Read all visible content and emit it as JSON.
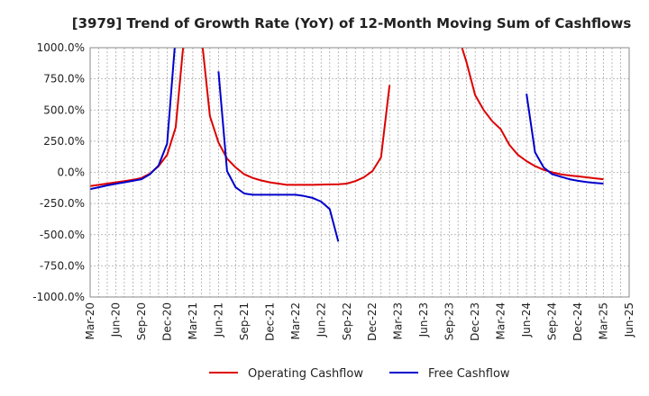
{
  "chart_data": {
    "type": "line",
    "title": "[3979]  Trend of Growth Rate (YoY) of 12-Month Moving Sum of Cashflows",
    "xlabel": "",
    "ylabel": "",
    "ylim": [
      -1000,
      1000
    ],
    "yticks": [
      1000,
      750,
      500,
      250,
      0,
      -250,
      -500,
      -750,
      -1000
    ],
    "ytick_labels": [
      "1000.0%",
      "750.0%",
      "500.0%",
      "250.0%",
      "0.0%",
      "-250.0%",
      "-500.0%",
      "-750.0%",
      "-1000.0%"
    ],
    "xtick_labels": [
      "Mar-20",
      "Jun-20",
      "Sep-20",
      "Dec-20",
      "Mar-21",
      "Jun-21",
      "Sep-21",
      "Dec-21",
      "Mar-22",
      "Jun-22",
      "Sep-22",
      "Dec-22",
      "Mar-23",
      "Jun-23",
      "Sep-23",
      "Dec-23",
      "Mar-24",
      "Jun-24",
      "Sep-24",
      "Dec-24",
      "Mar-25",
      "Jun-25"
    ],
    "grid": true,
    "legend_position": "bottom",
    "series": [
      {
        "name": "Operating Cashflow",
        "color": "#dd0000",
        "points": [
          [
            "Mar-20",
            -110
          ],
          [
            "Apr-20",
            -100
          ],
          [
            "May-20",
            -90
          ],
          [
            "Jun-20",
            -80
          ],
          [
            "Jul-20",
            -70
          ],
          [
            "Aug-20",
            -60
          ],
          [
            "Sep-20",
            -45
          ],
          [
            "Oct-20",
            -10
          ],
          [
            "Nov-20",
            50
          ],
          [
            "Dec-20",
            140
          ],
          [
            "Jan-21",
            360
          ],
          [
            "Feb-21",
            1100
          ],
          null,
          [
            "Apr-21",
            1100
          ],
          [
            "May-21",
            450
          ],
          [
            "Jun-21",
            240
          ],
          [
            "Jul-21",
            110
          ],
          [
            "Aug-21",
            40
          ],
          [
            "Sep-21",
            -15
          ],
          [
            "Oct-21",
            -45
          ],
          [
            "Nov-21",
            -65
          ],
          [
            "Dec-21",
            -80
          ],
          [
            "Jan-22",
            -90
          ],
          [
            "Feb-22",
            -100
          ],
          [
            "Mar-22",
            -100
          ],
          [
            "Apr-22",
            -100
          ],
          [
            "May-22",
            -100
          ],
          [
            "Jun-22",
            -98
          ],
          [
            "Jul-22",
            -97
          ],
          [
            "Aug-22",
            -96
          ],
          [
            "Sep-22",
            -90
          ],
          [
            "Oct-22",
            -70
          ],
          [
            "Nov-22",
            -40
          ],
          [
            "Dec-22",
            10
          ],
          [
            "Jan-23",
            120
          ],
          [
            "Feb-23",
            700
          ],
          null,
          [
            "Oct-23",
            1100
          ],
          [
            "Nov-23",
            880
          ],
          [
            "Dec-23",
            620
          ],
          [
            "Jan-24",
            500
          ],
          [
            "Feb-24",
            410
          ],
          [
            "Mar-24",
            345
          ],
          [
            "Apr-24",
            220
          ],
          [
            "May-24",
            140
          ],
          [
            "Jun-24",
            90
          ],
          [
            "Jul-24",
            50
          ],
          [
            "Aug-24",
            20
          ],
          [
            "Sep-24",
            0
          ],
          [
            "Oct-24",
            -15
          ],
          [
            "Nov-24",
            -25
          ],
          [
            "Dec-24",
            -32
          ],
          [
            "Jan-25",
            -40
          ],
          [
            "Feb-25",
            -48
          ],
          [
            "Mar-25",
            -55
          ]
        ]
      },
      {
        "name": "Free Cashflow",
        "color": "#0000cc",
        "points": [
          [
            "Mar-20",
            -135
          ],
          [
            "Apr-20",
            -120
          ],
          [
            "May-20",
            -105
          ],
          [
            "Jun-20",
            -92
          ],
          [
            "Jul-20",
            -80
          ],
          [
            "Aug-20",
            -68
          ],
          [
            "Sep-20",
            -55
          ],
          [
            "Oct-20",
            -15
          ],
          [
            "Nov-20",
            55
          ],
          [
            "Dec-20",
            230
          ],
          [
            "Jan-21",
            1100
          ],
          null,
          [
            "Jun-21",
            810
          ],
          [
            "Jul-21",
            10
          ],
          [
            "Aug-21",
            -120
          ],
          [
            "Sep-21",
            -170
          ],
          [
            "Oct-21",
            -180
          ],
          [
            "Nov-21",
            -180
          ],
          [
            "Dec-21",
            -180
          ],
          [
            "Jan-22",
            -180
          ],
          [
            "Feb-22",
            -180
          ],
          [
            "Mar-22",
            -180
          ],
          [
            "Apr-22",
            -190
          ],
          [
            "May-22",
            -205
          ],
          [
            "Jun-22",
            -235
          ],
          [
            "Jul-22",
            -295
          ],
          [
            "Aug-22",
            -555
          ],
          null,
          [
            "Jun-24",
            630
          ],
          [
            "Jul-24",
            160
          ],
          [
            "Aug-24",
            40
          ],
          [
            "Sep-24",
            -15
          ],
          [
            "Oct-24",
            -35
          ],
          [
            "Nov-24",
            -55
          ],
          [
            "Dec-24",
            -68
          ],
          [
            "Jan-25",
            -78
          ],
          [
            "Feb-25",
            -85
          ],
          [
            "Mar-25",
            -90
          ]
        ]
      }
    ]
  }
}
